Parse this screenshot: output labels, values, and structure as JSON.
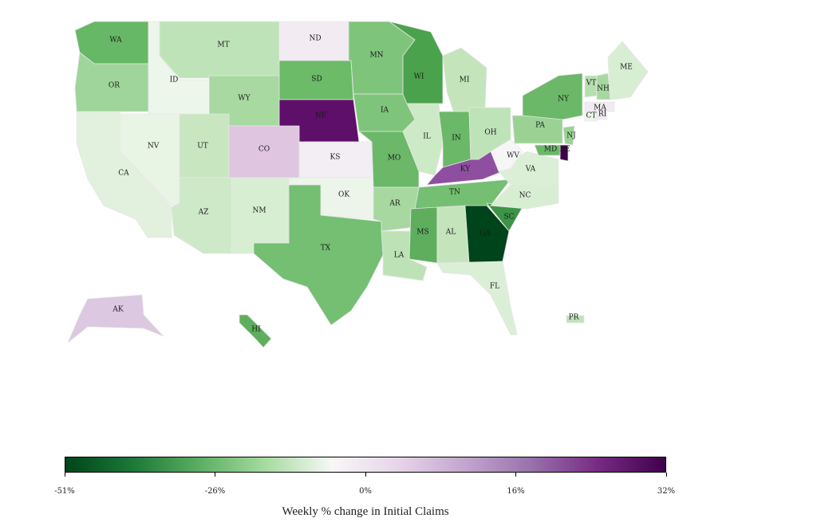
{
  "legend": {
    "title": "Weekly % change in Initial Claims",
    "ticks": [
      "-51%",
      "-26%",
      "0%",
      "16%",
      "32%"
    ],
    "gradient": [
      "#00441b",
      "#1b7837",
      "#5aae61",
      "#a6dba0",
      "#f7f7f7",
      "#e7d4e8",
      "#c2a5cf",
      "#9970ab",
      "#762a83",
      "#40004b"
    ]
  },
  "states": [
    {
      "abbr": "WA",
      "color": "#66b866"
    },
    {
      "abbr": "OR",
      "color": "#9fd49a"
    },
    {
      "abbr": "CA",
      "color": "#e2f1dd"
    },
    {
      "abbr": "ID",
      "color": "#edf6ea"
    },
    {
      "abbr": "NV",
      "color": "#e8f4e4"
    },
    {
      "abbr": "MT",
      "color": "#bfe3b8"
    },
    {
      "abbr": "WY",
      "color": "#a7d9a0"
    },
    {
      "abbr": "UT",
      "color": "#c8e7c1"
    },
    {
      "abbr": "AZ",
      "color": "#cde9c7"
    },
    {
      "abbr": "CO",
      "color": "#dfc5e0"
    },
    {
      "abbr": "NM",
      "color": "#d8eed3"
    },
    {
      "abbr": "ND",
      "color": "#f2ecf2"
    },
    {
      "abbr": "SD",
      "color": "#6bbb69"
    },
    {
      "abbr": "NE",
      "color": "#5e0f6a"
    },
    {
      "abbr": "KS",
      "color": "#f3eef3"
    },
    {
      "abbr": "OK",
      "color": "#edf5eb"
    },
    {
      "abbr": "TX",
      "color": "#74bf72"
    },
    {
      "abbr": "MN",
      "color": "#7fc47b"
    },
    {
      "abbr": "IA",
      "color": "#7fc47b"
    },
    {
      "abbr": "MO",
      "color": "#6bb868"
    },
    {
      "abbr": "AR",
      "color": "#a6d89f"
    },
    {
      "abbr": "LA",
      "color": "#bde2b6"
    },
    {
      "abbr": "WI",
      "color": "#4ba24d"
    },
    {
      "abbr": "IL",
      "color": "#cdeac6"
    },
    {
      "abbr": "MI",
      "color": "#c4e5bc"
    },
    {
      "abbr": "IN",
      "color": "#6bb868"
    },
    {
      "abbr": "OH",
      "color": "#bfe3b8"
    },
    {
      "abbr": "KY",
      "color": "#8e4fa0"
    },
    {
      "abbr": "TN",
      "color": "#74bf72"
    },
    {
      "abbr": "MS",
      "color": "#5eae5d"
    },
    {
      "abbr": "AL",
      "color": "#c4e5bc"
    },
    {
      "abbr": "GA",
      "color": "#00441b"
    },
    {
      "abbr": "FL",
      "color": "#dbefd6"
    },
    {
      "abbr": "SC",
      "color": "#3c9446"
    },
    {
      "abbr": "NC",
      "color": "#d8eed3"
    },
    {
      "abbr": "VA",
      "color": "#dbefd6"
    },
    {
      "abbr": "WV",
      "color": "#f6f6f6"
    },
    {
      "abbr": "PA",
      "color": "#9bd294"
    },
    {
      "abbr": "NY",
      "color": "#6bb868"
    },
    {
      "abbr": "VT",
      "color": "#b6dfae"
    },
    {
      "abbr": "NH",
      "color": "#a6d89f"
    },
    {
      "abbr": "ME",
      "color": "#d8eed3"
    },
    {
      "abbr": "MA",
      "color": "#f1ecf1"
    },
    {
      "abbr": "CT",
      "color": "#ebf5e8"
    },
    {
      "abbr": "RI",
      "color": "#f1ecf1"
    },
    {
      "abbr": "NJ",
      "color": "#9bd294"
    },
    {
      "abbr": "DE",
      "color": "#40004b"
    },
    {
      "abbr": "MD",
      "color": "#6bb868"
    },
    {
      "abbr": "AK",
      "color": "#dcc8e1"
    },
    {
      "abbr": "HI",
      "color": "#5eae5d"
    },
    {
      "abbr": "PR",
      "color": "#bfe3b8"
    }
  ]
}
